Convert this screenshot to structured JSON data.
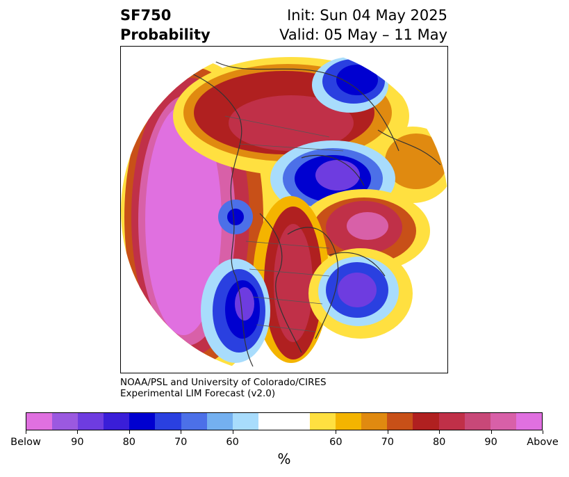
{
  "header": {
    "variable": "SF750",
    "product": "Probability",
    "init": "Init: Sun 04 May 2025",
    "valid": "Valid: 05 May – 11 May"
  },
  "credit": {
    "line1": "NOAA/PSL and University of Colorado/CIRES",
    "line2": "Experimental LIM Forecast (v2.0)"
  },
  "colorbar": {
    "colors": [
      "#e070e0",
      "#9b59e0",
      "#6e3ce0",
      "#3a1ed8",
      "#0000d0",
      "#2a40e0",
      "#4c70e8",
      "#74b0f0",
      "#a8dcfc",
      "#ffffff",
      "#ffffff",
      "#ffe040",
      "#f4b400",
      "#e08a10",
      "#c85018",
      "#b02020",
      "#c03048",
      "#c84878",
      "#d860a8",
      "#e070e0"
    ],
    "tick_labels": [
      "Below",
      "90",
      "80",
      "70",
      "60",
      "60",
      "70",
      "80",
      "90",
      "Above"
    ],
    "unit": "%"
  }
}
